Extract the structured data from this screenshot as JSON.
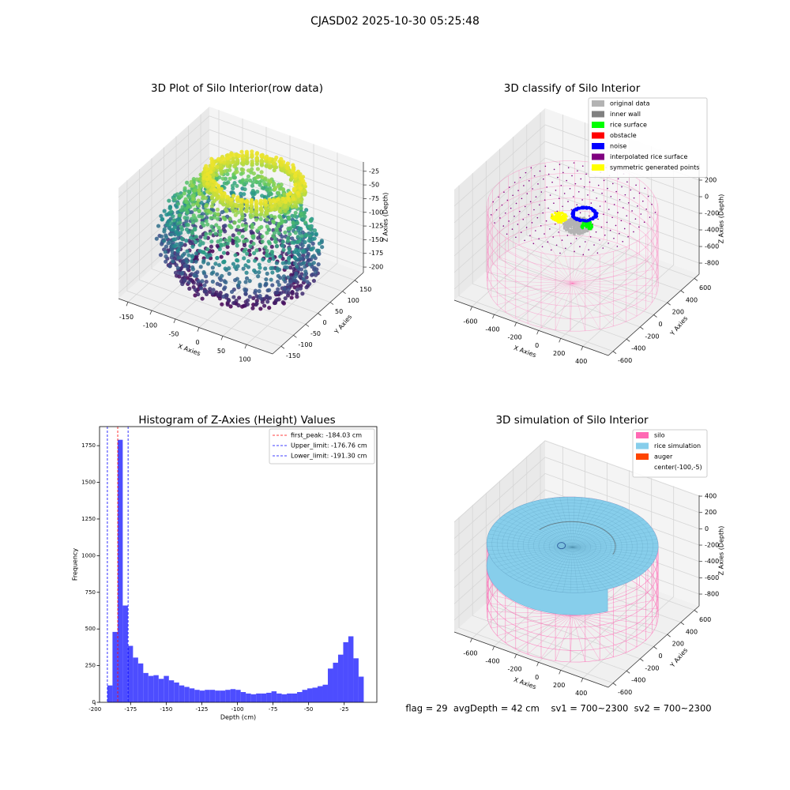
{
  "suptitle": "CJASD02 2025-10-30 05:25:48",
  "chart_data": [
    {
      "type": "scatter3d",
      "title": "3D Plot of Silo Interior(row data)",
      "xlabel": "X Axies",
      "ylabel": "Y Axies",
      "zlabel": "Z Axies (Depth)",
      "xlim": [
        -170,
        155
      ],
      "ylim": [
        -185,
        185
      ],
      "zlim": [
        -210,
        -8
      ],
      "xticks": [
        -150,
        -100,
        -50,
        0,
        50,
        100
      ],
      "yticks": [
        -150,
        -100,
        -50,
        0,
        50,
        100,
        150
      ],
      "zticks": [
        -200,
        -175,
        -150,
        -125,
        -100,
        -75,
        -50,
        -25
      ]
    },
    {
      "type": "scatter3d",
      "title": "3D classify of Silo Interior",
      "xlabel": "X Axies",
      "ylabel": "Y Axies",
      "zlabel": "Z Axies (Depth)",
      "xlim": [
        -760,
        630
      ],
      "ylim": [
        -670,
        670
      ],
      "zlim": [
        -933,
        400
      ],
      "xticks": [
        -600,
        -400,
        -200,
        0,
        200,
        400
      ],
      "yticks": [
        -600,
        -400,
        -200,
        0,
        200,
        400,
        600
      ],
      "zticks": [
        -800,
        -600,
        -400,
        -200,
        0,
        200
      ],
      "legend": [
        {
          "name": "original data",
          "color": "#b3b3b3"
        },
        {
          "name": "inner wall",
          "color": "#808080"
        },
        {
          "name": "rice surface",
          "color": "#00ff00"
        },
        {
          "name": "obstacle",
          "color": "#ff0000"
        },
        {
          "name": "noise",
          "color": "#0000ff"
        },
        {
          "name": "interpolated rice surface",
          "color": "#800080"
        },
        {
          "name": "symmetric generated points",
          "color": "#ffff00"
        }
      ]
    },
    {
      "type": "histogram",
      "title": "Histogram of Z-Axies (Height) Values",
      "xlabel": "Depth (cm)",
      "ylabel": "Frequency",
      "color": "#4d4dff",
      "bins": [
        -191.3,
        -187.7,
        -184.1,
        -180.5,
        -176.9,
        -173.3,
        -169.7,
        -166.1,
        -162.5,
        -158.9,
        -155.3,
        -151.7,
        -148.1,
        -144.5,
        -140.9,
        -137.3,
        -133.7,
        -130.1,
        -126.5,
        -122.9,
        -119.3,
        -115.7,
        -112.1,
        -108.5,
        -104.9,
        -101.3,
        -97.7,
        -94.1,
        -90.5,
        -86.9,
        -83.3,
        -79.7,
        -76.1,
        -72.5,
        -68.9,
        -65.3,
        -61.7,
        -58.1,
        -54.5,
        -50.9,
        -47.3,
        -43.7,
        -40.1,
        -36.5,
        -32.9,
        -29.3,
        -25.7,
        -22.1,
        -18.5,
        -14.9,
        -11.3
      ],
      "values": [
        115,
        480,
        1790,
        660,
        385,
        305,
        265,
        200,
        180,
        185,
        160,
        180,
        150,
        135,
        115,
        105,
        95,
        85,
        80,
        85,
        85,
        80,
        80,
        85,
        90,
        85,
        70,
        60,
        55,
        60,
        60,
        65,
        75,
        60,
        55,
        60,
        60,
        70,
        85,
        95,
        100,
        110,
        120,
        230,
        270,
        325,
        410,
        450,
        300,
        175
      ],
      "xlim": [
        -196.8,
        -2.1
      ],
      "ylim": [
        0,
        1880
      ],
      "xticks": [
        -200,
        -175,
        -150,
        -125,
        -100,
        -75,
        -50,
        -25
      ],
      "yticks": [
        0,
        250,
        500,
        750,
        1000,
        1250,
        1500,
        1750
      ],
      "vlines": [
        {
          "name": "first_peak: -184.03 cm",
          "value": -184.03,
          "color": "#ff0000"
        },
        {
          "name": "Upper_limit: -176.76 cm",
          "value": -176.76,
          "color": "#0000ff"
        },
        {
          "name": "Lower_limit: -191.30 cm",
          "value": -191.3,
          "color": "#0000ff"
        }
      ],
      "legend_loc": "upper right"
    },
    {
      "type": "surface3d",
      "title": "3D simulation of Silo Interior",
      "xlabel": "X Axies",
      "ylabel": "Y Axies",
      "zlabel": "Z Axies (Depth)",
      "xlim": [
        -760,
        630
      ],
      "ylim": [
        -670,
        670
      ],
      "zlim": [
        -945,
        410
      ],
      "xticks": [
        -600,
        -400,
        -200,
        0,
        200,
        400
      ],
      "yticks": [
        -600,
        -400,
        -200,
        0,
        200,
        400,
        600
      ],
      "zticks": [
        -800,
        -600,
        -400,
        -200,
        0,
        200,
        400
      ],
      "legend": [
        {
          "name": "silo",
          "color": "#ff69b4"
        },
        {
          "name": "rice simulation",
          "color": "#87ceeb"
        },
        {
          "name": "auger",
          "color": "#ff4500"
        },
        {
          "name": "center(-100,-5)"
        }
      ]
    }
  ],
  "footer": "flag = 29  avgDepth = 42 cm    sv1 = 700~2300  sv2 = 700~2300"
}
